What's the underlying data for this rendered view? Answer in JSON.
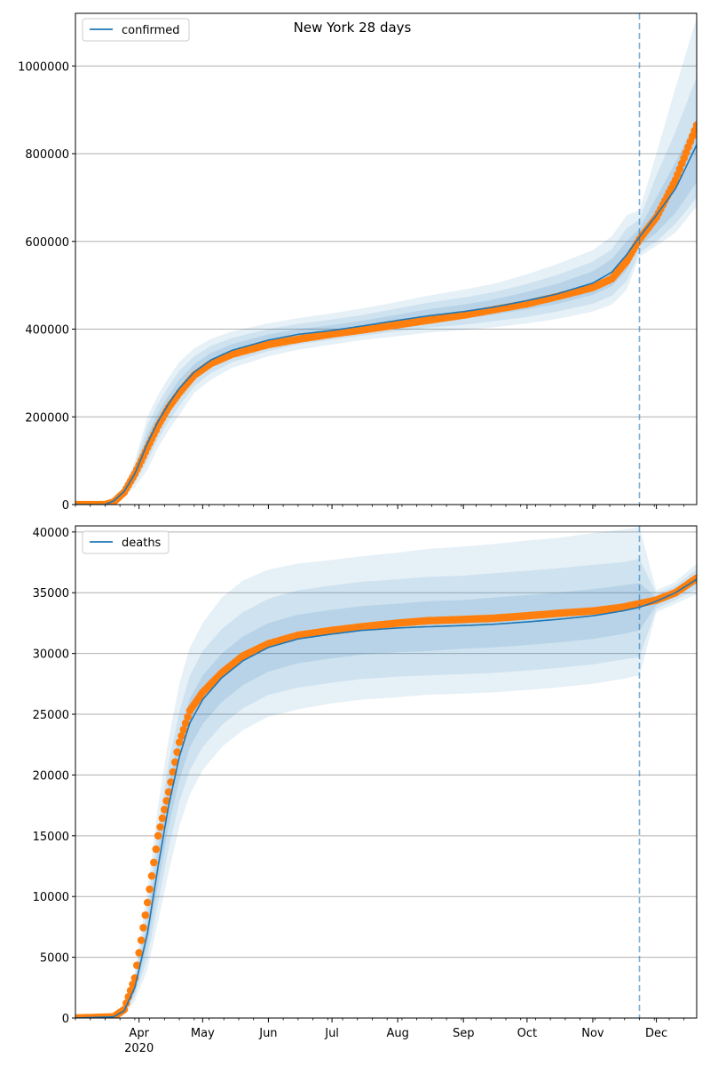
{
  "figure": {
    "title": "New York 28 days",
    "forecast_start_date": "2020-11-23"
  },
  "x_axis": {
    "date_range": [
      "2020-03-02",
      "2020-12-20"
    ],
    "major_ticks": [
      {
        "date": "2020-04-01",
        "label": "Apr",
        "sublabel": "2020"
      },
      {
        "date": "2020-05-01",
        "label": "May",
        "sublabel": ""
      },
      {
        "date": "2020-06-01",
        "label": "Jun",
        "sublabel": ""
      },
      {
        "date": "2020-07-01",
        "label": "Jul",
        "sublabel": ""
      },
      {
        "date": "2020-08-01",
        "label": "Aug",
        "sublabel": ""
      },
      {
        "date": "2020-09-01",
        "label": "Sep",
        "sublabel": ""
      },
      {
        "date": "2020-10-01",
        "label": "Oct",
        "sublabel": ""
      },
      {
        "date": "2020-11-01",
        "label": "Nov",
        "sublabel": ""
      },
      {
        "date": "2020-12-01",
        "label": "Dec",
        "sublabel": ""
      }
    ]
  },
  "colors": {
    "model_line": "#1f77b4",
    "band": "#1f77b4",
    "observed": "#ff7f0e",
    "grid": "#b0b0b0",
    "forecast_marker": "#1f77b4"
  },
  "chart_data": [
    {
      "type": "line",
      "series_name": "confirmed",
      "legend_position": "upper-left",
      "grid": "horizontal",
      "ylim": [
        0,
        1120000
      ],
      "yticks": [
        0,
        200000,
        400000,
        600000,
        800000,
        1000000
      ],
      "ytick_labels": [
        "0",
        "200000",
        "400000",
        "600000",
        "800000",
        "1000000"
      ],
      "model": {
        "x": [
          "2020-03-02",
          "2020-03-16",
          "2020-03-20",
          "2020-03-25",
          "2020-03-30",
          "2020-04-05",
          "2020-04-10",
          "2020-04-15",
          "2020-04-20",
          "2020-04-27",
          "2020-05-05",
          "2020-05-15",
          "2020-06-01",
          "2020-06-15",
          "2020-07-01",
          "2020-07-15",
          "2020-08-01",
          "2020-08-15",
          "2020-09-01",
          "2020-09-15",
          "2020-10-01",
          "2020-10-15",
          "2020-11-01",
          "2020-11-10",
          "2020-11-17",
          "2020-11-23",
          "2020-12-01",
          "2020-12-10",
          "2020-12-20"
        ],
        "y": [
          0,
          0,
          8000,
          30000,
          70000,
          140000,
          190000,
          230000,
          265000,
          302000,
          330000,
          352000,
          375000,
          388000,
          397000,
          407000,
          420000,
          430000,
          440000,
          450000,
          465000,
          480000,
          505000,
          530000,
          570000,
          610000,
          660000,
          720000,
          820000
        ],
        "band_inner": {
          "lower": [
            0,
            0,
            6000,
            26000,
            60000,
            120000,
            170000,
            210000,
            245000,
            285000,
            315000,
            338000,
            362000,
            376000,
            386000,
            395000,
            406000,
            415000,
            424000,
            433000,
            445000,
            457000,
            478000,
            498000,
            535000,
            590000,
            620000,
            665000,
            735000
          ],
          "upper": [
            0,
            0,
            10000,
            34000,
            80000,
            160000,
            210000,
            250000,
            285000,
            320000,
            346000,
            366000,
            388000,
            400000,
            409000,
            419000,
            433000,
            445000,
            456000,
            467000,
            485000,
            503000,
            532000,
            560000,
            600000,
            630000,
            700000,
            780000,
            880000
          ]
        },
        "band_middle": {
          "lower": [
            0,
            0,
            4000,
            22000,
            50000,
            100000,
            150000,
            190000,
            225000,
            270000,
            300000,
            325000,
            350000,
            365000,
            376000,
            385000,
            395000,
            403000,
            410000,
            418000,
            428000,
            440000,
            458000,
            476000,
            510000,
            575000,
            600000,
            640000,
            700000
          ],
          "upper": [
            0,
            0,
            12000,
            38000,
            90000,
            180000,
            230000,
            270000,
            305000,
            338000,
            362000,
            380000,
            400000,
            412000,
            422000,
            432000,
            447000,
            460000,
            472000,
            484000,
            503000,
            523000,
            554000,
            582000,
            630000,
            650000,
            750000,
            850000,
            975000
          ]
        },
        "band_outer": {
          "lower": [
            0,
            0,
            2000,
            18000,
            40000,
            80000,
            130000,
            170000,
            205000,
            255000,
            285000,
            312000,
            338000,
            353000,
            365000,
            375000,
            384000,
            392000,
            398000,
            404000,
            413000,
            423000,
            440000,
            456000,
            490000,
            565000,
            590000,
            620000,
            680000
          ],
          "upper": [
            0,
            0,
            14000,
            42000,
            100000,
            200000,
            250000,
            290000,
            325000,
            356000,
            378000,
            395000,
            413000,
            425000,
            436000,
            447000,
            462000,
            476000,
            490000,
            503000,
            525000,
            548000,
            580000,
            612000,
            660000,
            670000,
            800000,
            950000,
            1110000
          ]
        }
      },
      "observed": {
        "x": [
          "2020-03-02",
          "2020-03-16",
          "2020-03-20",
          "2020-03-25",
          "2020-03-30",
          "2020-04-05",
          "2020-04-10",
          "2020-04-15",
          "2020-04-20",
          "2020-04-27",
          "2020-05-05",
          "2020-05-15",
          "2020-06-01",
          "2020-06-15",
          "2020-07-01",
          "2020-07-15",
          "2020-08-01",
          "2020-08-15",
          "2020-09-01",
          "2020-09-15",
          "2020-10-01",
          "2020-10-15",
          "2020-11-01",
          "2020-11-10",
          "2020-11-17",
          "2020-11-23",
          "2020-12-01",
          "2020-12-10",
          "2020-12-20"
        ],
        "y": [
          0,
          0,
          6000,
          28000,
          70000,
          130000,
          180000,
          222000,
          255000,
          295000,
          322000,
          343000,
          365000,
          377000,
          389000,
          398000,
          410000,
          420000,
          432000,
          444000,
          458000,
          474000,
          495000,
          515000,
          555000,
          605000,
          655000,
          740000,
          865000
        ]
      }
    },
    {
      "type": "line",
      "series_name": "deaths",
      "legend_position": "upper-left",
      "grid": "horizontal",
      "ylim": [
        0,
        40500
      ],
      "yticks": [
        0,
        5000,
        10000,
        15000,
        20000,
        25000,
        30000,
        35000,
        40000
      ],
      "ytick_labels": [
        "0",
        "5000",
        "10000",
        "15000",
        "20000",
        "25000",
        "30000",
        "35000",
        "40000"
      ],
      "model": {
        "x": [
          "2020-03-02",
          "2020-03-20",
          "2020-03-25",
          "2020-03-30",
          "2020-04-05",
          "2020-04-10",
          "2020-04-15",
          "2020-04-20",
          "2020-04-25",
          "2020-05-01",
          "2020-05-10",
          "2020-05-20",
          "2020-06-01",
          "2020-06-15",
          "2020-07-01",
          "2020-07-15",
          "2020-08-01",
          "2020-08-15",
          "2020-09-01",
          "2020-09-15",
          "2020-10-01",
          "2020-10-15",
          "2020-11-01",
          "2020-11-15",
          "2020-11-23",
          "2020-12-01",
          "2020-12-10",
          "2020-12-20"
        ],
        "y": [
          0,
          100,
          600,
          2500,
          7000,
          12500,
          17500,
          21500,
          24300,
          26200,
          28000,
          29400,
          30500,
          31200,
          31600,
          31900,
          32100,
          32200,
          32300,
          32400,
          32600,
          32800,
          33100,
          33500,
          33800,
          34300,
          35000,
          36100
        ],
        "band_inner": {
          "lower": [
            0,
            100,
            500,
            2100,
            6000,
            11000,
            15800,
            19600,
            22300,
            24200,
            26000,
            27400,
            28500,
            29200,
            29600,
            29900,
            30100,
            30200,
            30400,
            30500,
            30700,
            30900,
            31200,
            31600,
            31900,
            34000,
            34700,
            35700
          ],
          "upper": [
            0,
            100,
            700,
            2900,
            8000,
            14000,
            19200,
            23400,
            26300,
            28200,
            30000,
            31400,
            32500,
            33200,
            33600,
            33900,
            34100,
            34300,
            34400,
            34600,
            34800,
            35000,
            35300,
            35600,
            35800,
            34600,
            35300,
            36500
          ]
        },
        "band_middle": {
          "lower": [
            0,
            100,
            400,
            1800,
            5000,
            9500,
            14000,
            17800,
            20400,
            22300,
            24100,
            25500,
            26600,
            27200,
            27600,
            27900,
            28100,
            28200,
            28300,
            28400,
            28600,
            28800,
            29100,
            29500,
            29700,
            33700,
            34400,
            35300
          ],
          "upper": [
            0,
            100,
            800,
            3300,
            9200,
            15600,
            21000,
            25200,
            28200,
            30200,
            32000,
            33400,
            34500,
            35200,
            35600,
            35900,
            36100,
            36300,
            36400,
            36600,
            36800,
            37000,
            37300,
            37500,
            37800,
            34900,
            35600,
            36900
          ]
        },
        "band_outer": {
          "lower": [
            0,
            100,
            300,
            1400,
            4000,
            8000,
            12000,
            15800,
            18400,
            20400,
            22300,
            23700,
            24800,
            25400,
            25900,
            26200,
            26400,
            26600,
            26700,
            26800,
            27000,
            27200,
            27500,
            27900,
            28200,
            33400,
            34100,
            34900
          ],
          "upper": [
            0,
            100,
            900,
            3800,
            10500,
            17500,
            23000,
            27500,
            30500,
            32500,
            34600,
            36000,
            36900,
            37400,
            37700,
            38000,
            38300,
            38600,
            38800,
            39000,
            39300,
            39500,
            39900,
            40200,
            40400,
            35200,
            35900,
            37400
          ]
        }
      },
      "observed": {
        "x": [
          "2020-03-02",
          "2020-03-20",
          "2020-03-25",
          "2020-03-30",
          "2020-04-05",
          "2020-04-10",
          "2020-04-15",
          "2020-04-20",
          "2020-04-25",
          "2020-05-01",
          "2020-05-10",
          "2020-05-20",
          "2020-06-01",
          "2020-06-15",
          "2020-07-01",
          "2020-07-15",
          "2020-08-01",
          "2020-08-15",
          "2020-09-01",
          "2020-09-15",
          "2020-10-01",
          "2020-10-15",
          "2020-11-01",
          "2020-11-15",
          "2020-11-23",
          "2020-12-01",
          "2020-12-10",
          "2020-12-20"
        ],
        "y": [
          0,
          100,
          700,
          3300,
          9500,
          15000,
          18600,
          22700,
          25300,
          26800,
          28400,
          29800,
          30800,
          31500,
          31900,
          32200,
          32500,
          32700,
          32800,
          32900,
          33100,
          33300,
          33500,
          33800,
          34100,
          34400,
          35000,
          36200
        ]
      }
    }
  ]
}
